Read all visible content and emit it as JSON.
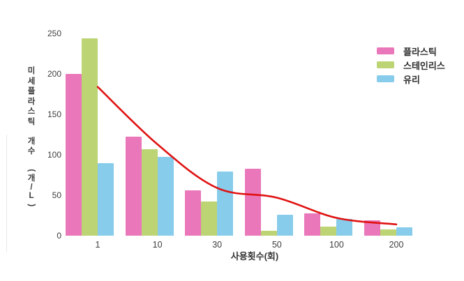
{
  "figure": {
    "background": "#ffffff",
    "text_color": "#3a3a3a"
  },
  "chart_data": {
    "type": "bar",
    "categories": [
      "1",
      "10",
      "30",
      "50",
      "100",
      "200"
    ],
    "series": [
      {
        "slug": "plastic",
        "name": "플라스틱",
        "kind": "bar",
        "color": "#ea77b9",
        "in_legend": true,
        "values": [
          200,
          122,
          56,
          83,
          28,
          19
        ]
      },
      {
        "slug": "stainless",
        "name": "스테인리스",
        "kind": "bar",
        "color": "#bcd474",
        "in_legend": true,
        "values": [
          244,
          107,
          42,
          6,
          11,
          8
        ]
      },
      {
        "slug": "glass",
        "name": "유리",
        "kind": "bar",
        "color": "#88cceb",
        "in_legend": true,
        "values": [
          90,
          97,
          79,
          26,
          21,
          10
        ]
      },
      {
        "slug": "trend",
        "name": "",
        "kind": "line",
        "color": "#e01212",
        "in_legend": false,
        "values": [
          184,
          113,
          59,
          47,
          22,
          14
        ]
      }
    ],
    "title": "",
    "xlabel": "사용횟수(회)",
    "ylabel": "미세플라스틱 개수 (개/L)",
    "ylabel_segments": [
      "미세플라스틱",
      "개수",
      "(개/L)"
    ],
    "ylim": [
      0,
      250
    ],
    "yticks": [
      0,
      50,
      100,
      150,
      200,
      250
    ],
    "grid": false,
    "legend_position": "top-right"
  }
}
